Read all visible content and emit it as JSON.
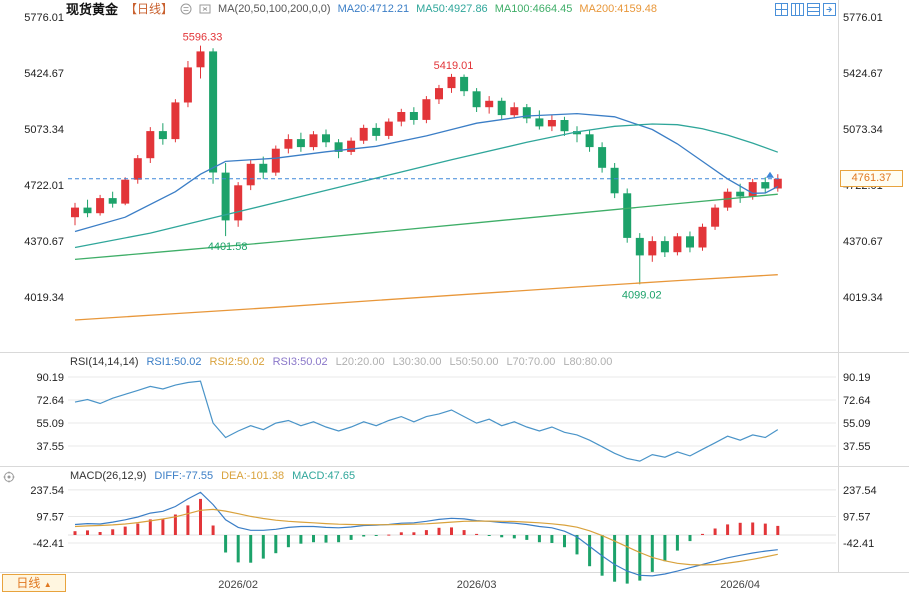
{
  "header": {
    "title": "现货黄金",
    "period": "【日线】",
    "ma_label": "MA(20,50,100,200,0,0)",
    "legend": [
      {
        "label": "MA20:4712.21",
        "color": "#3b7ec6"
      },
      {
        "label": "MA50:4927.86",
        "color": "#2fa69a"
      },
      {
        "label": "MA100:4664.45",
        "color": "#3fae68"
      },
      {
        "label": "MA200:4159.48",
        "color": "#e8973a"
      }
    ],
    "icons": [
      "chart-settings-icon",
      "indicator-tag-icon"
    ]
  },
  "toolbar_icons": [
    "layout-grid-icon",
    "layout-columns-icon",
    "layout-rows-icon",
    "expand-right-icon"
  ],
  "rsi_legend": {
    "label": "RSI(14,14,14)",
    "items": [
      {
        "label": "RSI1:50.02",
        "color": "#3b7ec6"
      },
      {
        "label": "RSI2:50.02",
        "color": "#d9a23c"
      },
      {
        "label": "RSI3:50.02",
        "color": "#8a77c9"
      },
      {
        "label": "L20:20.00",
        "color": "#b0b0b0"
      },
      {
        "label": "L30:30.00",
        "color": "#b0b0b0"
      },
      {
        "label": "L50:50.00",
        "color": "#b0b0b0"
      },
      {
        "label": "L70:70.00",
        "color": "#b0b0b0"
      },
      {
        "label": "L80:80.00",
        "color": "#b0b0b0"
      }
    ]
  },
  "macd_legend": {
    "label": "MACD(26,12,9)",
    "items": [
      {
        "label": "DIFF:-77.55",
        "color": "#3b7ec6"
      },
      {
        "label": "DEA:-101.38",
        "color": "#d9a23c"
      },
      {
        "label": "MACD:47.65",
        "color": "#2fa69a"
      }
    ]
  },
  "price_tag": {
    "label": "4761.37",
    "color": "#e07820"
  },
  "period_button": {
    "label": "日线",
    "arrow": "▲"
  },
  "chart_data": [
    {
      "type": "candlestick",
      "name": "main-price-panel",
      "title": "现货黄金 日线",
      "yticks": [
        5776.01,
        5424.67,
        5073.34,
        4722.01,
        4370.67,
        4019.34
      ],
      "up_color": "#e23539",
      "down_color": "#1ca26a",
      "last_price": 4761.37,
      "time_labels": [
        {
          "text": "2026/02",
          "index": 13
        },
        {
          "text": "2026/03",
          "index": 32
        },
        {
          "text": "2026/04",
          "index": 53
        }
      ],
      "annotations": [
        {
          "text": "5596.33",
          "index": 10,
          "price": 5596.33,
          "side": "above",
          "color": "#e23539"
        },
        {
          "text": "4401.58",
          "index": 12,
          "price": 4401.58,
          "side": "below",
          "color": "#1ca26a"
        },
        {
          "text": "5419.01",
          "index": 30,
          "price": 5419.01,
          "side": "above",
          "color": "#e23539"
        },
        {
          "text": "4099.02",
          "index": 45,
          "price": 4099.02,
          "side": "below",
          "color": "#1ca26a"
        }
      ],
      "candles": [
        [
          4520,
          4610,
          4470,
          4580
        ],
        [
          4580,
          4630,
          4520,
          4545
        ],
        [
          4545,
          4660,
          4530,
          4640
        ],
        [
          4640,
          4680,
          4580,
          4605
        ],
        [
          4605,
          4770,
          4595,
          4755
        ],
        [
          4755,
          4910,
          4730,
          4890
        ],
        [
          4890,
          5085,
          4860,
          5060
        ],
        [
          5060,
          5110,
          4975,
          5010
        ],
        [
          5010,
          5260,
          4990,
          5240
        ],
        [
          5240,
          5500,
          5210,
          5460
        ],
        [
          5460,
          5596.33,
          5390,
          5560
        ],
        [
          5560,
          5580,
          4730,
          4800
        ],
        [
          4800,
          4860,
          4401.58,
          4500
        ],
        [
          4500,
          4740,
          4460,
          4720
        ],
        [
          4720,
          4880,
          4690,
          4855
        ],
        [
          4855,
          4900,
          4760,
          4800
        ],
        [
          4800,
          4970,
          4780,
          4950
        ],
        [
          4950,
          5040,
          4920,
          5010
        ],
        [
          5010,
          5050,
          4930,
          4960
        ],
        [
          4960,
          5060,
          4940,
          5040
        ],
        [
          5040,
          5070,
          4960,
          4990
        ],
        [
          4990,
          5010,
          4890,
          4930
        ],
        [
          4930,
          5020,
          4910,
          5000
        ],
        [
          5000,
          5100,
          4980,
          5080
        ],
        [
          5080,
          5110,
          5000,
          5030
        ],
        [
          5030,
          5140,
          5010,
          5120
        ],
        [
          5120,
          5200,
          5090,
          5180
        ],
        [
          5180,
          5210,
          5100,
          5130
        ],
        [
          5130,
          5280,
          5110,
          5260
        ],
        [
          5260,
          5350,
          5230,
          5330
        ],
        [
          5330,
          5419.01,
          5300,
          5400
        ],
        [
          5400,
          5415,
          5280,
          5310
        ],
        [
          5310,
          5330,
          5180,
          5210
        ],
        [
          5210,
          5280,
          5170,
          5250
        ],
        [
          5250,
          5270,
          5130,
          5160
        ],
        [
          5160,
          5240,
          5140,
          5210
        ],
        [
          5210,
          5230,
          5110,
          5140
        ],
        [
          5140,
          5190,
          5070,
          5090
        ],
        [
          5090,
          5160,
          5060,
          5130
        ],
        [
          5130,
          5150,
          5030,
          5060
        ],
        [
          5060,
          5090,
          4990,
          5040
        ],
        [
          5040,
          5070,
          4930,
          4960
        ],
        [
          4960,
          4990,
          4800,
          4830
        ],
        [
          4830,
          4860,
          4640,
          4670
        ],
        [
          4670,
          4700,
          4360,
          4390
        ],
        [
          4390,
          4420,
          4099.02,
          4280
        ],
        [
          4280,
          4400,
          4240,
          4370
        ],
        [
          4370,
          4400,
          4270,
          4300
        ],
        [
          4300,
          4420,
          4280,
          4400
        ],
        [
          4400,
          4430,
          4300,
          4330
        ],
        [
          4330,
          4480,
          4310,
          4460
        ],
        [
          4460,
          4600,
          4440,
          4580
        ],
        [
          4580,
          4700,
          4560,
          4680
        ],
        [
          4680,
          4730,
          4610,
          4650
        ],
        [
          4650,
          4760,
          4630,
          4740
        ],
        [
          4740,
          4770,
          4670,
          4700
        ],
        [
          4700,
          4790,
          4680,
          4761.37
        ]
      ],
      "overlays": [
        {
          "name": "MA20",
          "color": "#3b7ec6",
          "points": [
            [
              0,
              4430
            ],
            [
              4,
              4520
            ],
            [
              8,
              4680
            ],
            [
              10,
              4790
            ],
            [
              12,
              4870
            ],
            [
              16,
              4890
            ],
            [
              20,
              4930
            ],
            [
              24,
              4965
            ],
            [
              28,
              5030
            ],
            [
              32,
              5110
            ],
            [
              36,
              5155
            ],
            [
              40,
              5170
            ],
            [
              43,
              5150
            ],
            [
              46,
              5070
            ],
            [
              48,
              4980
            ],
            [
              50,
              4870
            ],
            [
              52,
              4760
            ],
            [
              54,
              4670
            ],
            [
              55,
              4672
            ],
            [
              56,
              4712.21
            ]
          ]
        },
        {
          "name": "MA50",
          "color": "#2fa69a",
          "points": [
            [
              0,
              4330
            ],
            [
              6,
              4420
            ],
            [
              12,
              4535
            ],
            [
              18,
              4650
            ],
            [
              24,
              4765
            ],
            [
              30,
              4880
            ],
            [
              36,
              4990
            ],
            [
              40,
              5055
            ],
            [
              43,
              5090
            ],
            [
              46,
              5105
            ],
            [
              48,
              5100
            ],
            [
              50,
              5075
            ],
            [
              52,
              5035
            ],
            [
              54,
              4985
            ],
            [
              56,
              4927.86
            ]
          ]
        },
        {
          "name": "MA100",
          "color": "#3fae68",
          "points": [
            [
              0,
              4255
            ],
            [
              8,
              4310
            ],
            [
              16,
              4365
            ],
            [
              24,
              4425
            ],
            [
              32,
              4485
            ],
            [
              40,
              4545
            ],
            [
              48,
              4605
            ],
            [
              56,
              4664.45
            ]
          ]
        },
        {
          "name": "MA200",
          "color": "#e8973a",
          "points": [
            [
              0,
              3875
            ],
            [
              8,
              3915
            ],
            [
              16,
              3955
            ],
            [
              24,
              3998
            ],
            [
              32,
              4040
            ],
            [
              40,
              4082
            ],
            [
              48,
              4122
            ],
            [
              56,
              4159.48
            ]
          ]
        }
      ]
    },
    {
      "type": "line",
      "name": "rsi-panel",
      "title": "RSI(14,14,14)",
      "yticks": [
        90.19,
        72.64,
        55.09,
        37.55
      ],
      "levels": [
        20,
        30,
        50,
        70,
        80
      ],
      "series": [
        {
          "name": "RSI",
          "color": "#4a94c8",
          "values": [
            71,
            73,
            70,
            74,
            77,
            80,
            83,
            81,
            84,
            86,
            87,
            55,
            44,
            49,
            53,
            50,
            55,
            57,
            53,
            56,
            52,
            49,
            52,
            56,
            53,
            57,
            60,
            56,
            60,
            62,
            65,
            60,
            55,
            58,
            53,
            56,
            52,
            49,
            52,
            48,
            46,
            42,
            37,
            32,
            28,
            26,
            31,
            29,
            33,
            30,
            35,
            40,
            45,
            42,
            46,
            44,
            50.02
          ]
        }
      ]
    },
    {
      "type": "macd",
      "name": "macd-panel",
      "title": "MACD(26,12,9)",
      "yticks": [
        237.54,
        97.57,
        -42.41
      ],
      "up_color": "#e23539",
      "down_color": "#1ca26a",
      "hist_formula": "2*(DIFF-DEA)",
      "diff": {
        "color": "#3b7ec6",
        "values": [
          55,
          60,
          58,
          68,
          80,
          95,
          115,
          125,
          150,
          190,
          225,
          160,
          80,
          40,
          25,
          25,
          30,
          40,
          45,
          45,
          40,
          38,
          42,
          50,
          52,
          55,
          62,
          64,
          72,
          82,
          88,
          85,
          76,
          72,
          66,
          62,
          55,
          45,
          38,
          20,
          -10,
          -60,
          -110,
          -155,
          -190,
          -212,
          -215,
          -205,
          -190,
          -172,
          -155,
          -138,
          -120,
          -107,
          -95,
          -85,
          -77.55
        ]
      },
      "dea": {
        "color": "#d9a23c",
        "values": [
          45,
          48,
          50,
          53,
          58,
          65,
          74,
          84,
          96,
          112,
          130,
          135,
          126,
          112,
          98,
          87,
          78,
          72,
          68,
          64,
          60,
          57,
          55,
          54,
          54,
          54,
          55,
          57,
          59,
          63,
          68,
          72,
          73,
          73,
          72,
          71,
          68,
          64,
          59,
          52,
          41,
          22,
          -3,
          -32,
          -62,
          -92,
          -118,
          -136,
          -149,
          -156,
          -158,
          -155,
          -148,
          -139,
          -128,
          -115,
          -101.38
        ]
      }
    }
  ]
}
